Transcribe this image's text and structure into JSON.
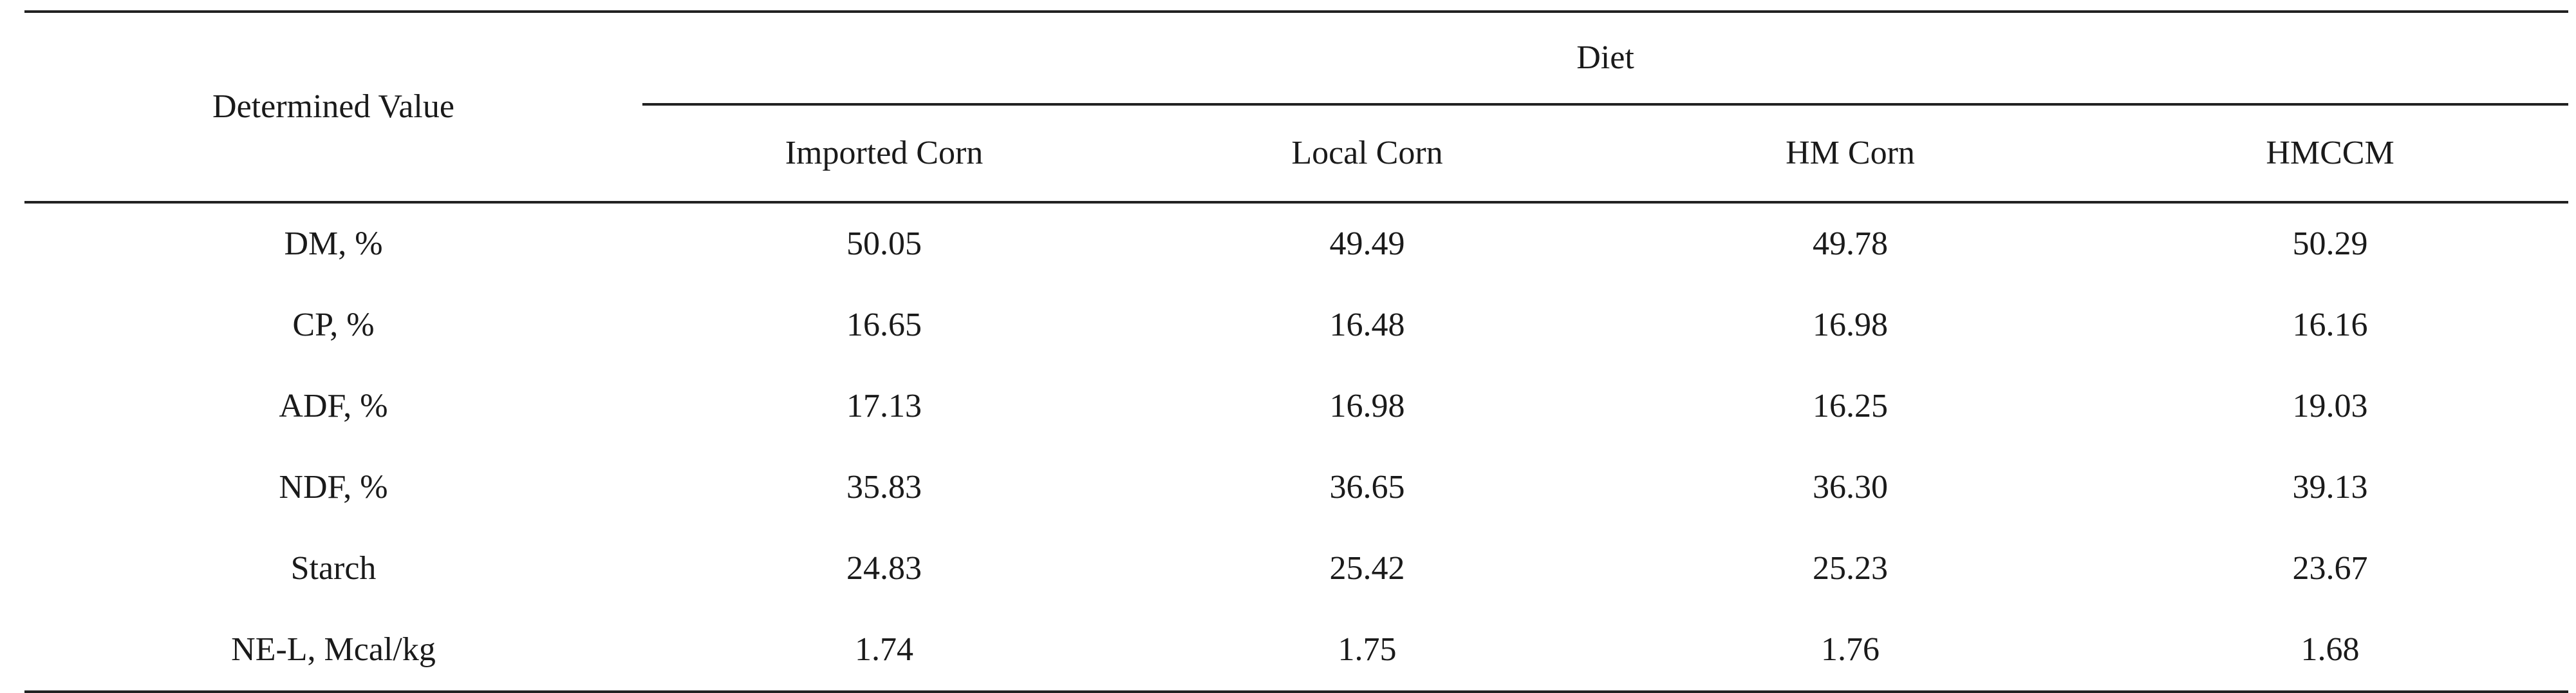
{
  "table": {
    "row_header": "Determined Value",
    "group_header": "Diet",
    "columns": [
      "Imported Corn",
      "Local Corn",
      "HM Corn",
      "HMCCM"
    ],
    "rows": [
      {
        "label": "DM, %",
        "values": [
          "50.05",
          "49.49",
          "49.78",
          "50.29"
        ]
      },
      {
        "label": "CP, %",
        "values": [
          "16.65",
          "16.48",
          "16.98",
          "16.16"
        ]
      },
      {
        "label": "ADF, %",
        "values": [
          "17.13",
          "16.98",
          "16.25",
          "19.03"
        ]
      },
      {
        "label": "NDF, %",
        "values": [
          "35.83",
          "36.65",
          "36.30",
          "39.13"
        ]
      },
      {
        "label": "Starch",
        "values": [
          "24.83",
          "25.42",
          "25.23",
          "23.67"
        ]
      },
      {
        "label": "NE-L, Mcal/kg",
        "values": [
          "1.74",
          "1.75",
          "1.76",
          "1.68"
        ]
      }
    ]
  }
}
